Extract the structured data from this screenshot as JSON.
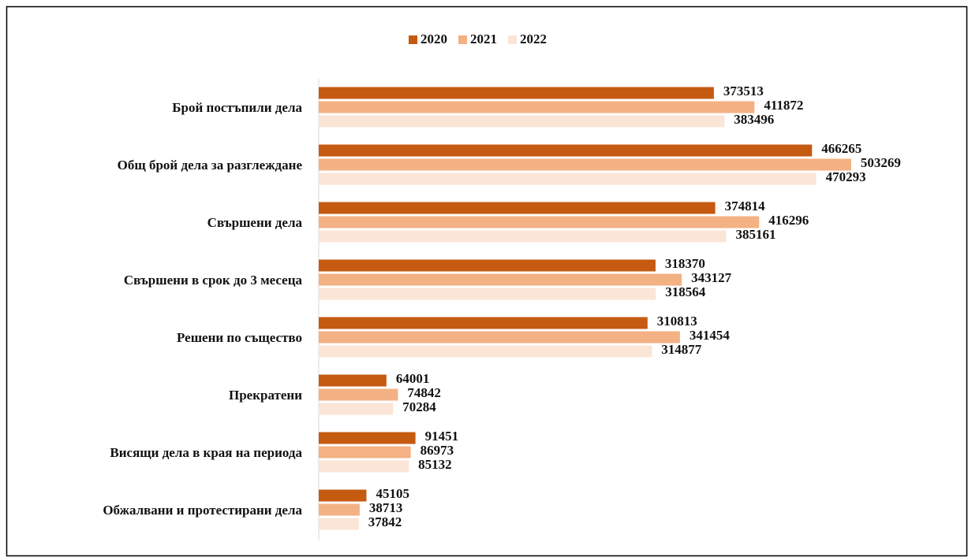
{
  "chart_data": {
    "type": "bar",
    "orientation": "horizontal",
    "categories": [
      "Брой постъпили дела",
      "Общ брой дела за разглеждане",
      "Свършени дела",
      "Свършени в срок до 3 месеца",
      "Решени по същество",
      "Прекратени",
      "Висящи дела в края на периода",
      "Обжалвани и протестирани дела"
    ],
    "series": [
      {
        "name": "2020",
        "color": "#c55a11",
        "values": [
          373513,
          466265,
          374814,
          318370,
          310813,
          64001,
          91451,
          45105
        ]
      },
      {
        "name": "2021",
        "color": "#f4b183",
        "values": [
          411872,
          503269,
          416296,
          343127,
          341454,
          74842,
          86973,
          38713
        ]
      },
      {
        "name": "2022",
        "color": "#fbe5d6",
        "values": [
          383496,
          470293,
          385161,
          318564,
          314877,
          70284,
          85132,
          37842
        ]
      }
    ],
    "xlim": [
      0,
      600000
    ],
    "legend": "top",
    "data_labels": true
  }
}
